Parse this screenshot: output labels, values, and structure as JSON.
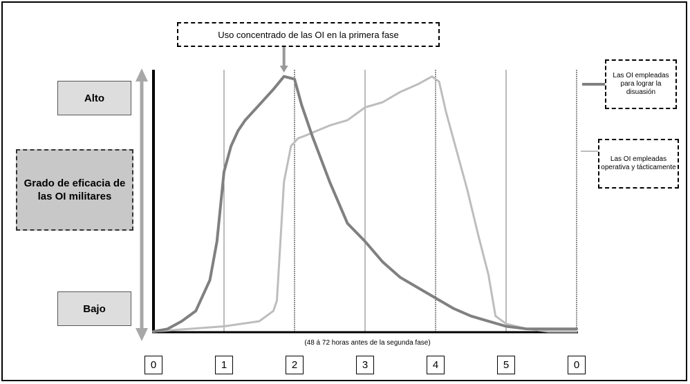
{
  "chart_data": {
    "type": "line",
    "title": "",
    "ylabel": "Grado de eficacia de las OI militares",
    "yticks": [
      "Alto",
      "Bajo"
    ],
    "xlabel": "(48 á 72 horas antes de la segunda fase)",
    "x_ticks": [
      "0",
      "1",
      "2",
      "3",
      "4",
      "5",
      "0"
    ],
    "x_range": [
      0,
      6
    ],
    "y_range": [
      0,
      100
    ],
    "grid": "vertical lines at each phase",
    "annotations": [
      {
        "text": "Uso concentrado de las OI en la primera fase",
        "points_to": {
          "x": 1.85,
          "y": 100
        }
      }
    ],
    "legend_placement": "right",
    "series": [
      {
        "name": "Las OI empleadas para lograr la disuasión",
        "color": "#808080",
        "x": [
          0,
          0.2,
          0.4,
          0.6,
          0.8,
          0.9,
          1.0,
          1.1,
          1.2,
          1.3,
          1.5,
          1.7,
          1.85,
          2.0,
          2.1,
          2.25,
          2.5,
          2.75,
          3.0,
          3.25,
          3.5,
          3.75,
          4.0,
          4.25,
          4.5,
          4.75,
          5.0,
          5.3,
          5.6,
          6.0
        ],
        "y": [
          0,
          1,
          4,
          8,
          20,
          35,
          62,
          72,
          78,
          82,
          88,
          94,
          99,
          98,
          88,
          76,
          58,
          42,
          35,
          27,
          21,
          17,
          13,
          9,
          6,
          4,
          2,
          1,
          1,
          1
        ]
      },
      {
        "name": "Las OI empleadas operativa y tácticamente",
        "color": "#bdbdbd",
        "x": [
          0,
          0.5,
          1.0,
          1.5,
          1.7,
          1.75,
          1.8,
          1.85,
          1.95,
          2.05,
          2.15,
          2.5,
          2.75,
          3.0,
          3.25,
          3.5,
          3.75,
          3.95,
          4.05,
          4.15,
          4.3,
          4.45,
          4.6,
          4.75,
          4.85,
          5.0,
          5.3,
          5.6,
          6.0
        ],
        "y": [
          0,
          1,
          2,
          4,
          8,
          12,
          35,
          58,
          72,
          75,
          76,
          80,
          82,
          87,
          89,
          93,
          96,
          99,
          97,
          85,
          70,
          55,
          38,
          22,
          6,
          3,
          1,
          0,
          0
        ]
      }
    ]
  }
}
